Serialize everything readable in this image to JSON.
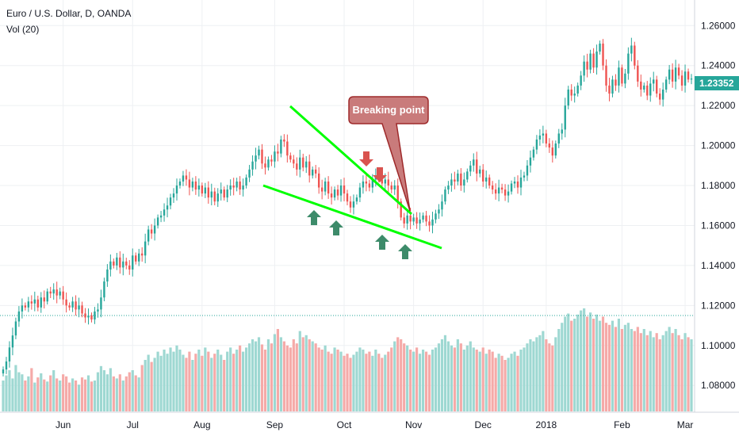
{
  "header": {
    "symbol_line": "Euro / U.S. Dollar, D, OANDA",
    "indicator_line": "Vol (20)"
  },
  "colors": {
    "up_candle": "#26a69a",
    "down_candle": "#ef5350",
    "up_volume": "#9ed8d2",
    "down_volume": "#f5aaa8",
    "trendline": "#00ff00",
    "arrow_up": "#3d8b6a",
    "arrow_down": "#d9534f",
    "callout_fill": "#c97b7b",
    "callout_stroke": "#9e2a2b",
    "price_badge": "#26a69a",
    "grid": "#eef0f3",
    "support_dotted": "#26a69a"
  },
  "chart_data": {
    "type": "candlestick",
    "title": "Euro / U.S. Dollar, D, OANDA",
    "ylim": [
      1.067,
      1.272
    ],
    "y_ticks": [
      "1.26000",
      "1.24000",
      "1.22000",
      "1.20000",
      "1.18000",
      "1.16000",
      "1.14000",
      "1.12000",
      "1.10000",
      "1.08000"
    ],
    "x_ticks": [
      "Jun",
      "Jul",
      "Aug",
      "Sep",
      "Oct",
      "Nov",
      "Dec",
      "2018",
      "Feb",
      "Mar"
    ],
    "x_tick_days": [
      19,
      41,
      63,
      86,
      108,
      130,
      152,
      172,
      196,
      216
    ],
    "grid": true,
    "last_price": "1.23352",
    "support_level": 1.1157,
    "close_series": [
      1.088,
      1.092,
      1.099,
      1.105,
      1.112,
      1.117,
      1.12,
      1.119,
      1.122,
      1.121,
      1.123,
      1.119,
      1.124,
      1.122,
      1.127,
      1.126,
      1.128,
      1.125,
      1.127,
      1.123,
      1.12,
      1.119,
      1.122,
      1.118,
      1.12,
      1.116,
      1.114,
      1.115,
      1.113,
      1.117,
      1.118,
      1.124,
      1.132,
      1.138,
      1.142,
      1.14,
      1.144,
      1.139,
      1.142,
      1.14,
      1.138,
      1.145,
      1.142,
      1.146,
      1.145,
      1.152,
      1.158,
      1.156,
      1.16,
      1.164,
      1.165,
      1.168,
      1.17,
      1.174,
      1.176,
      1.18,
      1.182,
      1.185,
      1.183,
      1.179,
      1.182,
      1.178,
      1.18,
      1.176,
      1.179,
      1.174,
      1.177,
      1.172,
      1.176,
      1.178,
      1.174,
      1.178,
      1.18,
      1.179,
      1.182,
      1.178,
      1.18,
      1.184,
      1.188,
      1.192,
      1.195,
      1.198,
      1.191,
      1.189,
      1.193,
      1.192,
      1.197,
      1.196,
      1.203,
      1.202,
      1.195,
      1.193,
      1.191,
      1.188,
      1.194,
      1.189,
      1.192,
      1.185,
      1.188,
      1.186,
      1.179,
      1.177,
      1.182,
      1.176,
      1.174,
      1.178,
      1.175,
      1.18,
      1.176,
      1.172,
      1.169,
      1.172,
      1.174,
      1.179,
      1.182,
      1.181,
      1.179,
      1.183,
      1.185,
      1.183,
      1.181,
      1.183,
      1.18,
      1.178,
      1.18,
      1.172,
      1.164,
      1.161,
      1.165,
      1.162,
      1.164,
      1.161,
      1.163,
      1.165,
      1.162,
      1.16,
      1.163,
      1.166,
      1.168,
      1.172,
      1.178,
      1.18,
      1.183,
      1.182,
      1.186,
      1.18,
      1.183,
      1.187,
      1.19,
      1.193,
      1.186,
      1.188,
      1.182,
      1.184,
      1.18,
      1.178,
      1.176,
      1.179,
      1.178,
      1.175,
      1.177,
      1.181,
      1.182,
      1.179,
      1.184,
      1.185,
      1.19,
      1.194,
      1.198,
      1.203,
      1.205,
      1.206,
      1.201,
      1.199,
      1.195,
      1.201,
      1.206,
      1.208,
      1.22,
      1.228,
      1.225,
      1.226,
      1.23,
      1.235,
      1.242,
      1.238,
      1.246,
      1.239,
      1.247,
      1.251,
      1.24,
      1.23,
      1.226,
      1.233,
      1.23,
      1.239,
      1.231,
      1.236,
      1.246,
      1.25,
      1.24,
      1.232,
      1.228,
      1.23,
      1.225,
      1.231,
      1.233,
      1.226,
      1.223,
      1.228,
      1.233,
      1.238,
      1.232,
      1.239,
      1.235,
      1.23,
      1.237,
      1.233,
      1.2335
    ],
    "volume": [
      0.3,
      0.35,
      0.4,
      0.32,
      0.45,
      0.38,
      0.36,
      0.3,
      0.34,
      0.42,
      0.28,
      0.33,
      0.37,
      0.31,
      0.29,
      0.35,
      0.4,
      0.32,
      0.3,
      0.36,
      0.34,
      0.28,
      0.32,
      0.3,
      0.26,
      0.33,
      0.31,
      0.35,
      0.29,
      0.3,
      0.38,
      0.44,
      0.4,
      0.36,
      0.42,
      0.34,
      0.32,
      0.36,
      0.3,
      0.34,
      0.38,
      0.4,
      0.35,
      0.33,
      0.45,
      0.5,
      0.55,
      0.48,
      0.52,
      0.58,
      0.54,
      0.6,
      0.56,
      0.62,
      0.58,
      0.64,
      0.6,
      0.55,
      0.52,
      0.58,
      0.5,
      0.56,
      0.6,
      0.54,
      0.62,
      0.58,
      0.52,
      0.56,
      0.6,
      0.55,
      0.5,
      0.58,
      0.62,
      0.56,
      0.6,
      0.64,
      0.58,
      0.62,
      0.66,
      0.7,
      0.68,
      0.72,
      0.65,
      0.6,
      0.7,
      0.66,
      0.75,
      0.8,
      0.72,
      0.68,
      0.64,
      0.62,
      0.7,
      0.66,
      0.78,
      0.72,
      0.74,
      0.7,
      0.68,
      0.66,
      0.62,
      0.6,
      0.64,
      0.58,
      0.56,
      0.62,
      0.6,
      0.58,
      0.54,
      0.56,
      0.52,
      0.55,
      0.58,
      0.62,
      0.6,
      0.56,
      0.58,
      0.54,
      0.6,
      0.56,
      0.52,
      0.55,
      0.58,
      0.62,
      0.68,
      0.72,
      0.7,
      0.66,
      0.64,
      0.6,
      0.58,
      0.62,
      0.56,
      0.6,
      0.58,
      0.55,
      0.6,
      0.62,
      0.66,
      0.7,
      0.74,
      0.68,
      0.64,
      0.62,
      0.7,
      0.66,
      0.6,
      0.64,
      0.68,
      0.62,
      0.6,
      0.58,
      0.62,
      0.56,
      0.6,
      0.58,
      0.52,
      0.56,
      0.54,
      0.5,
      0.52,
      0.56,
      0.58,
      0.54,
      0.6,
      0.62,
      0.66,
      0.7,
      0.68,
      0.72,
      0.74,
      0.78,
      0.7,
      0.66,
      0.64,
      0.72,
      0.8,
      0.86,
      0.92,
      0.95,
      0.88,
      0.9,
      0.94,
      0.98,
      1.0,
      0.92,
      0.96,
      0.9,
      0.94,
      0.88,
      0.92,
      0.86,
      0.84,
      0.88,
      0.82,
      0.9,
      0.8,
      0.84,
      0.86,
      0.8,
      0.78,
      0.82,
      0.76,
      0.8,
      0.74,
      0.78,
      0.72,
      0.76,
      0.7,
      0.74,
      0.78,
      0.82,
      0.76,
      0.8,
      0.74,
      0.7,
      0.76,
      0.72,
      0.7
    ],
    "annotations": {
      "callout_text": "Breaking point"
    }
  }
}
